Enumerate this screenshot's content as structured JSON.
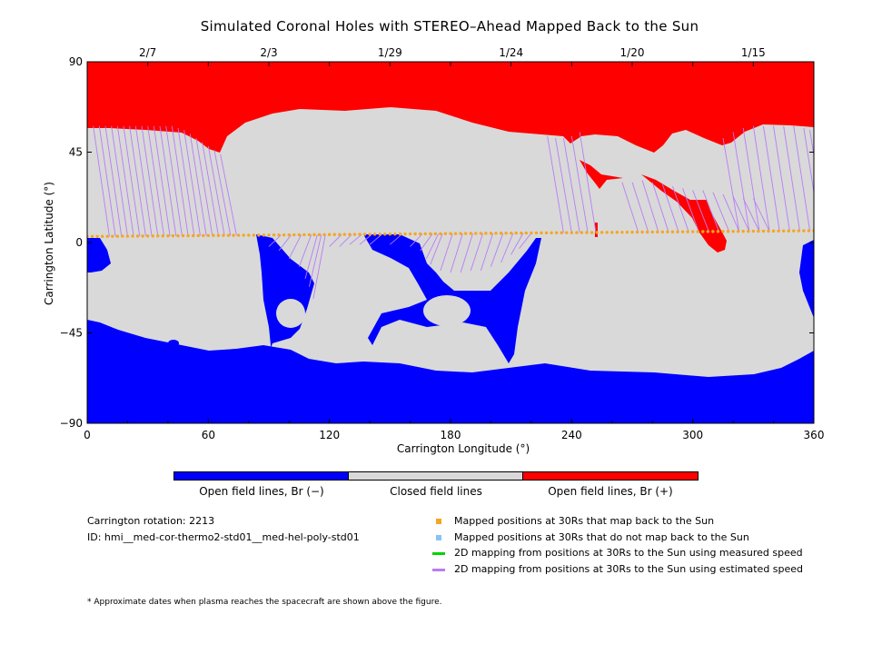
{
  "title": "Simulated Coronal Holes with STEREO–Ahead Mapped Back to the Sun",
  "chart_data": {
    "type": "heatmap",
    "xlabel": "Carrington Longitude (°)",
    "ylabel": "Carrington Latitude (°)",
    "xlim": [
      0,
      360
    ],
    "ylim": [
      -90,
      90
    ],
    "x_ticks": [
      "0",
      "60",
      "120",
      "180",
      "240",
      "300",
      "360"
    ],
    "y_ticks": [
      "90",
      "45",
      "0",
      "−45",
      "−90"
    ],
    "top_dates": [
      {
        "label": "2/7",
        "lon": 30
      },
      {
        "label": "2/3",
        "lon": 90
      },
      {
        "label": "1/29",
        "lon": 150
      },
      {
        "label": "1/24",
        "lon": 210
      },
      {
        "label": "1/20",
        "lon": 270
      },
      {
        "label": "1/15",
        "lon": 330
      }
    ],
    "colors": {
      "open_negative": "#0000ff",
      "closed": "#d9d9d9",
      "open_positive": "#ff0000",
      "mapped": "#f5a623",
      "unmapped": "#87c3f5",
      "measured": "#00d400",
      "estimated": "#b97cf7"
    },
    "colorbar_labels": [
      "Open field lines, Br (−)",
      "Closed field lines",
      "Open field lines, Br (+)"
    ],
    "mapped_positions_lat": 3,
    "footpoints": [
      [
        3,
        58
      ],
      [
        6,
        58
      ],
      [
        9,
        58
      ],
      [
        12,
        58
      ],
      [
        15,
        58
      ],
      [
        18,
        58
      ],
      [
        21,
        58
      ],
      [
        24,
        58
      ],
      [
        27,
        58
      ],
      [
        30,
        58
      ],
      [
        33,
        58
      ],
      [
        36,
        58
      ],
      [
        39,
        58
      ],
      [
        42,
        58
      ],
      [
        45,
        57
      ],
      [
        48,
        56
      ],
      [
        51,
        54
      ],
      [
        54,
        52
      ],
      [
        57,
        50
      ],
      [
        60,
        48
      ],
      [
        63,
        46
      ],
      [
        66,
        44
      ],
      [
        90,
        -2
      ],
      [
        95,
        -4
      ],
      [
        100,
        -8
      ],
      [
        105,
        -12
      ],
      [
        108,
        -18
      ],
      [
        110,
        -22
      ],
      [
        112,
        -28
      ],
      [
        120,
        -2
      ],
      [
        125,
        -2
      ],
      [
        130,
        -1
      ],
      [
        135,
        -1
      ],
      [
        140,
        -1
      ],
      [
        150,
        -1
      ],
      [
        160,
        -2
      ],
      [
        165,
        -4
      ],
      [
        168,
        -8
      ],
      [
        170,
        -11
      ],
      [
        175,
        -14
      ],
      [
        180,
        -15
      ],
      [
        185,
        -15
      ],
      [
        190,
        -14
      ],
      [
        195,
        -14
      ],
      [
        200,
        -12
      ],
      [
        205,
        -10
      ],
      [
        210,
        -6
      ],
      [
        214,
        -3
      ],
      [
        228,
        53
      ],
      [
        232,
        52
      ],
      [
        236,
        52
      ],
      [
        240,
        53
      ],
      [
        244,
        55
      ],
      [
        265,
        30
      ],
      [
        270,
        30
      ],
      [
        275,
        31
      ],
      [
        280,
        30
      ],
      [
        285,
        29
      ],
      [
        290,
        28
      ],
      [
        295,
        27
      ],
      [
        300,
        26
      ],
      [
        305,
        26
      ],
      [
        310,
        25
      ],
      [
        315,
        24
      ],
      [
        320,
        23
      ],
      [
        325,
        22
      ],
      [
        330,
        22
      ],
      [
        315,
        52
      ],
      [
        320,
        55
      ],
      [
        325,
        57
      ],
      [
        330,
        58
      ],
      [
        335,
        58
      ],
      [
        340,
        58
      ],
      [
        345,
        58
      ],
      [
        350,
        58
      ],
      [
        355,
        57
      ],
      [
        358,
        56
      ]
    ]
  },
  "colorbar": {
    "label_neg": "Open field lines, Br (−)",
    "label_closed": "Closed field lines",
    "label_pos": "Open field lines, Br (+)"
  },
  "info": {
    "rotation": "Carrington rotation: 2213",
    "id": "ID: hmi__med-cor-thermo2-std01__med-hel-poly-std01",
    "footnote": "* Approximate dates when plasma reaches the spacecraft are shown above the figure."
  },
  "legend": {
    "mapped": "Mapped positions at 30Rs that map back to the Sun",
    "unmapped": "Mapped positions at 30Rs that do not map back to the Sun",
    "measured": "2D mapping from positions at 30Rs to the Sun using measured speed",
    "estimated": "2D mapping from positions at 30Rs to the Sun using estimated speed"
  }
}
